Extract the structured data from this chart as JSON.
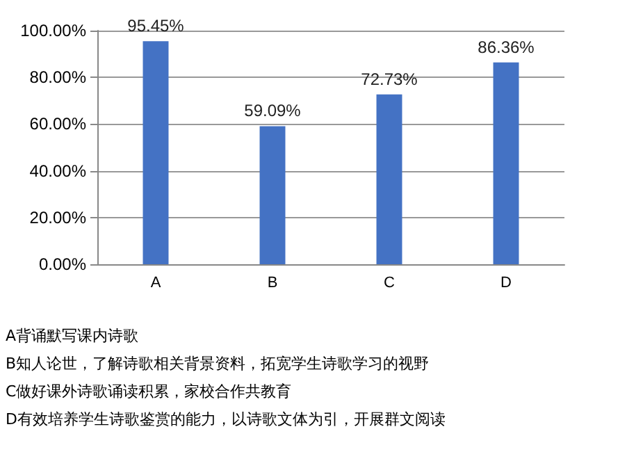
{
  "chart_data": {
    "type": "bar",
    "categories": [
      "A",
      "B",
      "C",
      "D"
    ],
    "values": [
      95.45,
      59.09,
      72.73,
      86.36
    ],
    "value_labels": [
      "95.45%",
      "59.09%",
      "72.73%",
      "86.36%"
    ],
    "color": "#4472c4",
    "ylim": [
      0,
      100
    ],
    "yticks": [
      {
        "value": 0,
        "label": "0.00%"
      },
      {
        "value": 20,
        "label": "20.00%"
      },
      {
        "value": 40,
        "label": "40.00%"
      },
      {
        "value": 60,
        "label": "60.00%"
      },
      {
        "value": 80,
        "label": "80.00%"
      },
      {
        "value": 100,
        "label": "100.00%"
      }
    ],
    "grid": "y",
    "annotations": [
      "A背诵默写课内诗歌",
      "B知人论世，了解诗歌相关背景资料，拓宽学生诗歌学习的视野",
      "C做好课外诗歌诵读积累，家校合作共教育",
      "D有效培养学生诗歌鉴赏的能力，以诗歌文体为引，开展群文阅读"
    ]
  }
}
